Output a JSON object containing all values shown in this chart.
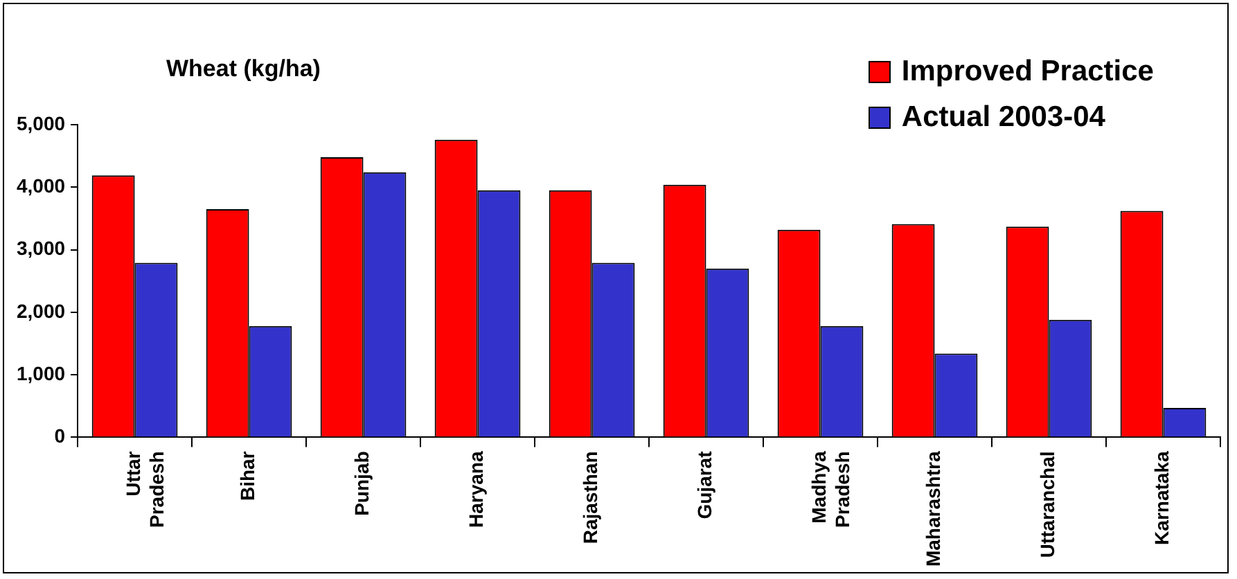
{
  "chart_data": {
    "type": "bar",
    "title": "Wheat (kg/ha)",
    "categories": [
      "Uttar Pradesh",
      "Bihar",
      "Punjab",
      "Haryana",
      "Rajasthan",
      "Gujarat",
      "Madhya Pradesh",
      "Maharashtra",
      "Uttaranchal",
      "Karnataka"
    ],
    "series": [
      {
        "name": "Improved Practice",
        "color": "#ff0000",
        "values": [
          4190,
          3650,
          4480,
          4760,
          3950,
          4040,
          3320,
          3410,
          3370,
          3620
        ]
      },
      {
        "name": "Actual 2003-04",
        "color": "#3333cc",
        "values": [
          2790,
          1780,
          4240,
          3950,
          2790,
          2700,
          1780,
          1340,
          1880,
          470
        ]
      }
    ],
    "ylim": [
      0,
      5000
    ],
    "yticks": [
      {
        "value": 0,
        "label": "0"
      },
      {
        "value": 1000,
        "label": "1,000"
      },
      {
        "value": 2000,
        "label": "2,000"
      },
      {
        "value": 3000,
        "label": "3,000"
      },
      {
        "value": 4000,
        "label": "4,000"
      },
      {
        "value": 5000,
        "label": "5,000"
      }
    ],
    "grid": false,
    "legend": "top right"
  }
}
